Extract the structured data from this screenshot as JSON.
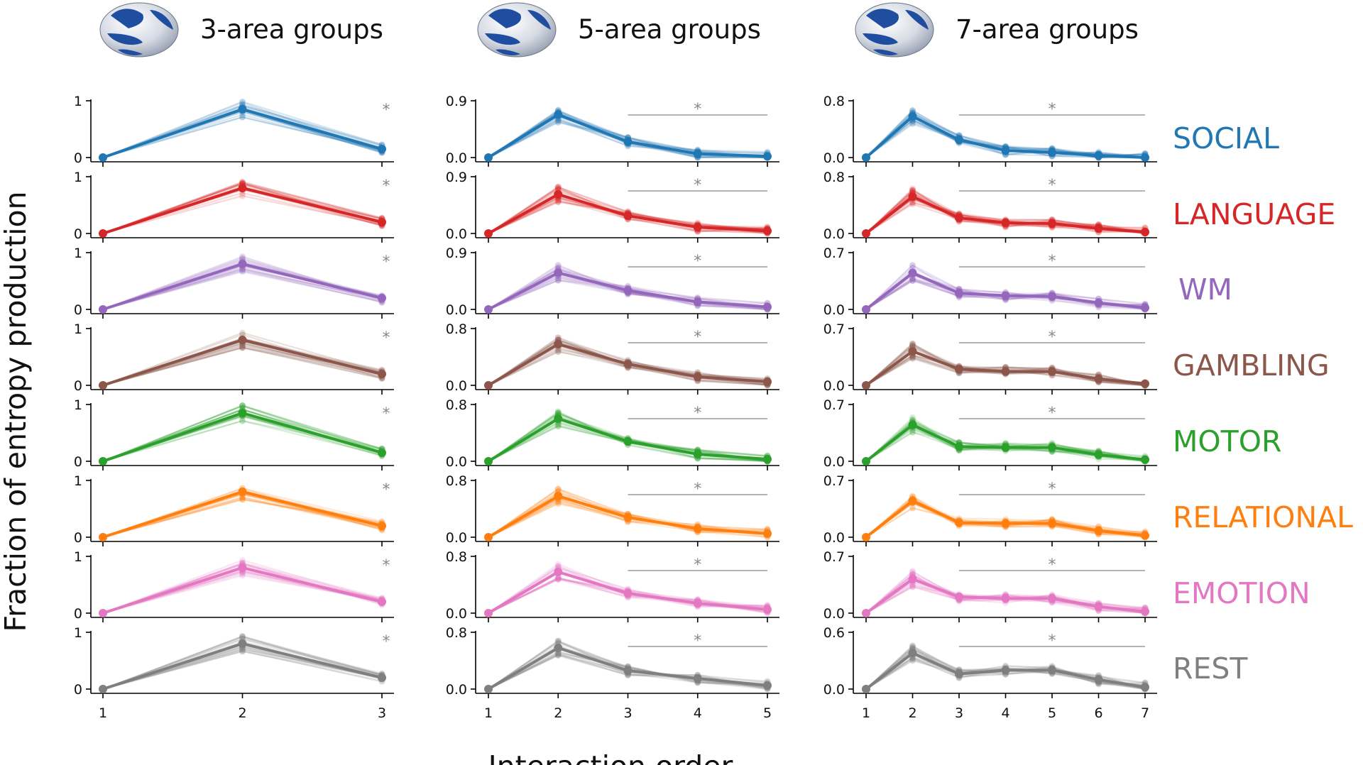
{
  "figure": {
    "ylabel": "Fraction of entropy production",
    "xlabel": "Interaction order"
  },
  "tasks": [
    {
      "name": "SOCIAL",
      "color": "#1f77b4"
    },
    {
      "name": "LANGUAGE",
      "color": "#d62728"
    },
    {
      "name": "WM",
      "color": "#9467bd"
    },
    {
      "name": "GAMBLING",
      "color": "#8c564b"
    },
    {
      "name": "MOTOR",
      "color": "#2ca02c"
    },
    {
      "name": "RELATIONAL",
      "color": "#ff7f0e"
    },
    {
      "name": "EMOTION",
      "color": "#e377c2"
    },
    {
      "name": "REST",
      "color": "#7f7f7f"
    }
  ],
  "columns": [
    {
      "title": "3-area groups",
      "icon": "brain-icon",
      "xticks": [
        "1",
        "2",
        "3"
      ],
      "significance_marker": "*"
    },
    {
      "title": "5-area groups",
      "icon": "brain-icon",
      "xticks": [
        "1",
        "2",
        "3",
        "4",
        "5"
      ],
      "significance_marker": "*"
    },
    {
      "title": "7-area groups",
      "icon": "brain-icon",
      "xticks": [
        "1",
        "2",
        "3",
        "4",
        "5",
        "6",
        "7"
      ],
      "significance_marker": "*"
    }
  ],
  "chart_data": {
    "type": "line",
    "title": "",
    "xlabel": "Interaction order",
    "ylabel": "Fraction of entropy production",
    "grid": false,
    "panels": [
      {
        "column": "3-area groups",
        "x": [
          1,
          2,
          3
        ],
        "rows": [
          {
            "task": "SOCIAL",
            "ylim": [
              0,
              1
            ],
            "yticks": [
              "0",
              "1"
            ],
            "values": [
              0.0,
              0.85,
              0.15
            ]
          },
          {
            "task": "LANGUAGE",
            "ylim": [
              0,
              1
            ],
            "yticks": [
              "0",
              "1"
            ],
            "values": [
              0.0,
              0.8,
              0.2
            ]
          },
          {
            "task": "WM",
            "ylim": [
              0,
              1
            ],
            "yticks": [
              "0",
              "1"
            ],
            "values": [
              0.0,
              0.8,
              0.2
            ]
          },
          {
            "task": "GAMBLING",
            "ylim": [
              0,
              1
            ],
            "yticks": [
              "0",
              "1"
            ],
            "values": [
              0.0,
              0.8,
              0.2
            ]
          },
          {
            "task": "MOTOR",
            "ylim": [
              0,
              1
            ],
            "yticks": [
              "0",
              "1"
            ],
            "values": [
              0.0,
              0.85,
              0.15
            ]
          },
          {
            "task": "RELATIONAL",
            "ylim": [
              0,
              1
            ],
            "yticks": [
              "0",
              "1"
            ],
            "values": [
              0.0,
              0.8,
              0.2
            ]
          },
          {
            "task": "EMOTION",
            "ylim": [
              0,
              1
            ],
            "yticks": [
              "0",
              "1"
            ],
            "values": [
              0.0,
              0.8,
              0.2
            ]
          },
          {
            "task": "REST",
            "ylim": [
              0,
              1
            ],
            "yticks": [
              "0",
              "1"
            ],
            "values": [
              0.0,
              0.8,
              0.2
            ]
          }
        ]
      },
      {
        "column": "5-area groups",
        "x": [
          1,
          2,
          3,
          4,
          5
        ],
        "significance_range": [
          3,
          5
        ],
        "rows": [
          {
            "task": "SOCIAL",
            "ylim": [
              0,
              0.9
            ],
            "yticks": [
              "0.0",
              "0.9"
            ],
            "values": [
              0.0,
              0.68,
              0.25,
              0.06,
              0.02
            ]
          },
          {
            "task": "LANGUAGE",
            "ylim": [
              0,
              0.9
            ],
            "yticks": [
              "0.0",
              "0.9"
            ],
            "values": [
              0.0,
              0.62,
              0.28,
              0.1,
              0.04
            ]
          },
          {
            "task": "WM",
            "ylim": [
              0,
              0.9
            ],
            "yticks": [
              "0.0",
              "0.9"
            ],
            "values": [
              0.0,
              0.58,
              0.3,
              0.12,
              0.04
            ]
          },
          {
            "task": "GAMBLING",
            "ylim": [
              0,
              0.8
            ],
            "yticks": [
              "0.0",
              "0.8"
            ],
            "values": [
              0.0,
              0.58,
              0.3,
              0.12,
              0.05
            ]
          },
          {
            "task": "MOTOR",
            "ylim": [
              0,
              0.8
            ],
            "yticks": [
              "0.0",
              "0.8"
            ],
            "values": [
              0.0,
              0.6,
              0.28,
              0.1,
              0.03
            ]
          },
          {
            "task": "RELATIONAL",
            "ylim": [
              0,
              0.8
            ],
            "yticks": [
              "0.0",
              "0.8"
            ],
            "values": [
              0.0,
              0.58,
              0.28,
              0.12,
              0.05
            ]
          },
          {
            "task": "EMOTION",
            "ylim": [
              0,
              0.8
            ],
            "yticks": [
              "0.0",
              "0.8"
            ],
            "values": [
              0.0,
              0.58,
              0.28,
              0.14,
              0.05
            ]
          },
          {
            "task": "REST",
            "ylim": [
              0,
              0.8
            ],
            "yticks": [
              "0.0",
              "0.8"
            ],
            "values": [
              0.0,
              0.58,
              0.26,
              0.15,
              0.05
            ]
          }
        ]
      },
      {
        "column": "7-area groups",
        "x": [
          1,
          2,
          3,
          4,
          5,
          6,
          7
        ],
        "significance_range": [
          3,
          7
        ],
        "rows": [
          {
            "task": "SOCIAL",
            "ylim": [
              0,
              0.8
            ],
            "yticks": [
              "0.0",
              "0.8"
            ],
            "values": [
              0.0,
              0.58,
              0.25,
              0.1,
              0.07,
              0.03,
              0.0
            ]
          },
          {
            "task": "LANGUAGE",
            "ylim": [
              0,
              0.8
            ],
            "yticks": [
              "0.0",
              "0.8"
            ],
            "values": [
              0.0,
              0.52,
              0.22,
              0.15,
              0.14,
              0.07,
              0.02
            ]
          },
          {
            "task": "WM",
            "ylim": [
              0,
              0.7
            ],
            "yticks": [
              "0.0",
              "0.7"
            ],
            "values": [
              0.0,
              0.45,
              0.2,
              0.17,
              0.16,
              0.08,
              0.02
            ]
          },
          {
            "task": "GAMBLING",
            "ylim": [
              0,
              0.7
            ],
            "yticks": [
              "0.0",
              "0.7"
            ],
            "values": [
              0.0,
              0.42,
              0.2,
              0.17,
              0.17,
              0.08,
              0.02
            ]
          },
          {
            "task": "MOTOR",
            "ylim": [
              0,
              0.7
            ],
            "yticks": [
              "0.0",
              "0.7"
            ],
            "values": [
              0.0,
              0.45,
              0.18,
              0.17,
              0.17,
              0.08,
              0.02
            ]
          },
          {
            "task": "RELATIONAL",
            "ylim": [
              0,
              0.7
            ],
            "yticks": [
              "0.0",
              "0.7"
            ],
            "values": [
              0.0,
              0.45,
              0.18,
              0.17,
              0.17,
              0.08,
              0.02
            ]
          },
          {
            "task": "EMOTION",
            "ylim": [
              0,
              0.7
            ],
            "yticks": [
              "0.0",
              "0.7"
            ],
            "values": [
              0.0,
              0.42,
              0.2,
              0.18,
              0.18,
              0.08,
              0.02
            ]
          },
          {
            "task": "REST",
            "ylim": [
              0,
              0.6
            ],
            "yticks": [
              "0.0",
              "0.6"
            ],
            "values": [
              0.0,
              0.38,
              0.16,
              0.2,
              0.2,
              0.1,
              0.02
            ]
          }
        ]
      }
    ]
  }
}
